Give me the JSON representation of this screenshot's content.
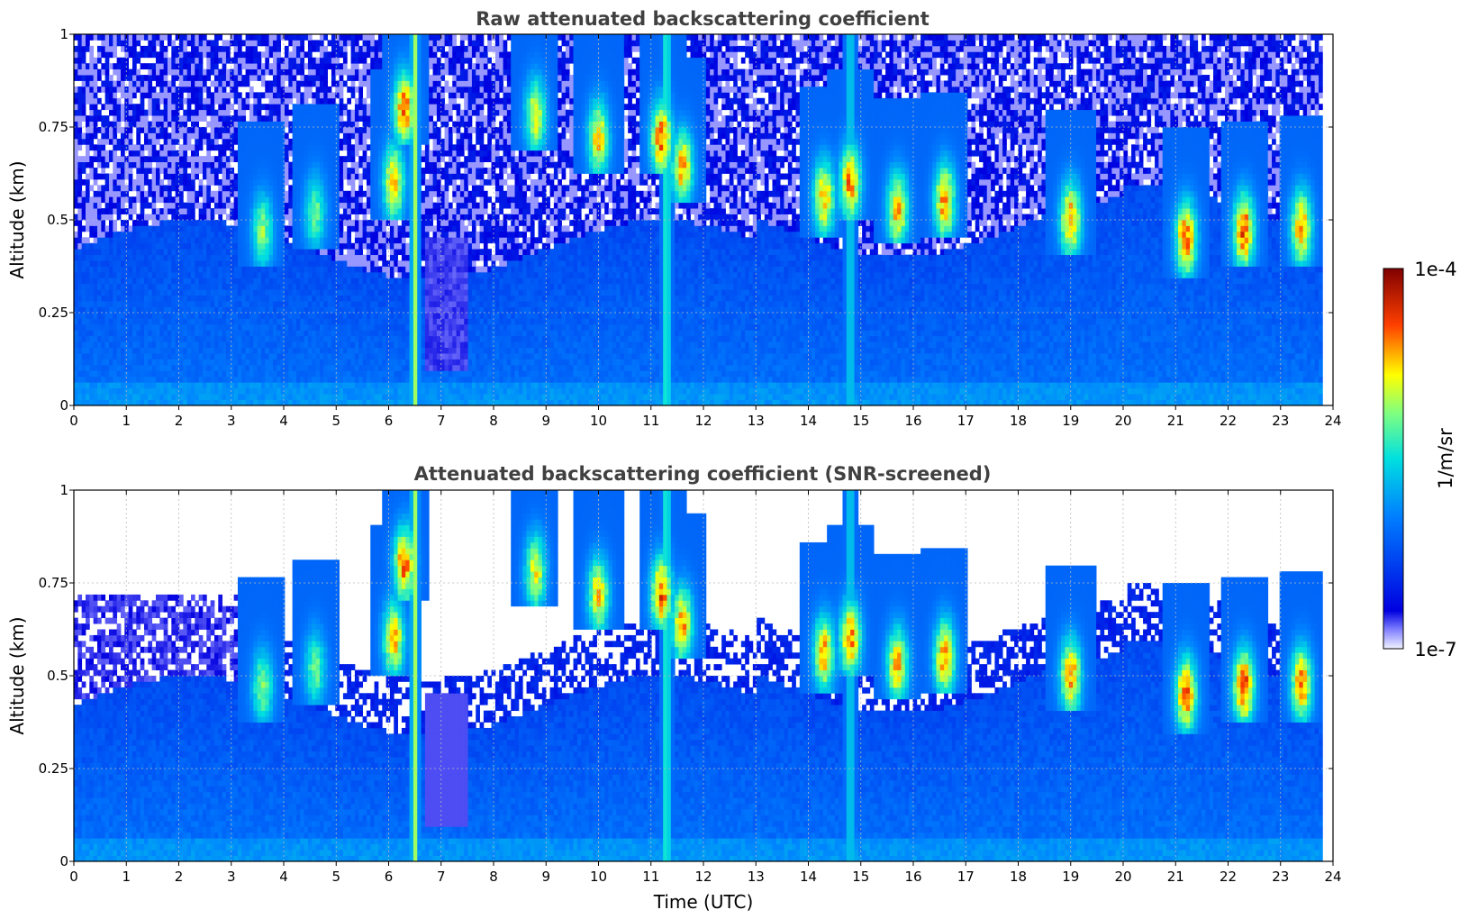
{
  "chart_data": [
    {
      "type": "heatmap",
      "title": "Raw attenuated backscattering coefficient",
      "xlabel": "",
      "ylabel": "Altitude (km)",
      "xlim": [
        0,
        24
      ],
      "ylim": [
        0,
        1
      ],
      "x_ticks": [
        "0",
        "1",
        "2",
        "3",
        "4",
        "5",
        "6",
        "7",
        "8",
        "9",
        "10",
        "11",
        "12",
        "13",
        "14",
        "15",
        "16",
        "17",
        "18",
        "19",
        "20",
        "21",
        "22",
        "23",
        "24"
      ],
      "y_ticks": [
        "0",
        "0.25",
        "0.5",
        "0.75",
        "1"
      ],
      "y_tick_values": [
        0,
        0.25,
        0.5,
        0.75,
        1
      ],
      "grid": true,
      "screened": false,
      "data_end_hour": 23.8,
      "plumes": [
        {
          "t": 3.6,
          "alt": 0.47,
          "strength": 0.55
        },
        {
          "t": 4.6,
          "alt": 0.52,
          "strength": 0.5
        },
        {
          "t": 6.1,
          "alt": 0.6,
          "strength": 0.8
        },
        {
          "t": 6.3,
          "alt": 0.8,
          "strength": 0.9
        },
        {
          "t": 8.8,
          "alt": 0.78,
          "strength": 0.7
        },
        {
          "t": 10.0,
          "alt": 0.72,
          "strength": 0.75
        },
        {
          "t": 11.2,
          "alt": 0.72,
          "strength": 0.9
        },
        {
          "t": 11.6,
          "alt": 0.64,
          "strength": 0.8
        },
        {
          "t": 14.3,
          "alt": 0.56,
          "strength": 0.8
        },
        {
          "t": 14.8,
          "alt": 0.6,
          "strength": 0.85
        },
        {
          "t": 15.7,
          "alt": 0.53,
          "strength": 0.8
        },
        {
          "t": 16.6,
          "alt": 0.55,
          "strength": 0.85
        },
        {
          "t": 19.0,
          "alt": 0.5,
          "strength": 0.85
        },
        {
          "t": 21.2,
          "alt": 0.45,
          "strength": 0.9
        },
        {
          "t": 22.3,
          "alt": 0.47,
          "strength": 0.95
        },
        {
          "t": 23.4,
          "alt": 0.48,
          "strength": 0.85
        }
      ],
      "aerosol_columns": [
        {
          "t": 6.5,
          "strength": 0.7
        },
        {
          "t": 11.3,
          "strength": 0.55
        },
        {
          "t": 14.8,
          "strength": 0.4
        }
      ]
    },
    {
      "type": "heatmap",
      "title": "Attenuated backscattering coefficient (SNR-screened)",
      "xlabel": "Time (UTC)",
      "ylabel": "Altitude (km)",
      "xlim": [
        0,
        24
      ],
      "ylim": [
        0,
        1
      ],
      "x_ticks": [
        "0",
        "1",
        "2",
        "3",
        "4",
        "5",
        "6",
        "7",
        "8",
        "9",
        "10",
        "11",
        "12",
        "13",
        "14",
        "15",
        "16",
        "17",
        "18",
        "19",
        "20",
        "21",
        "22",
        "23",
        "24"
      ],
      "y_ticks": [
        "0",
        "0.25",
        "0.5",
        "0.75",
        "1"
      ],
      "y_tick_values": [
        0,
        0.25,
        0.5,
        0.75,
        1
      ],
      "grid": true,
      "screened": true,
      "data_end_hour": 23.8
    }
  ],
  "colorbar": {
    "label": "1/m/sr",
    "max_label": "1e-4",
    "min_label": "1e-7",
    "scale": "log",
    "range": [
      1e-07,
      0.0001
    ],
    "colormap": "jet"
  }
}
